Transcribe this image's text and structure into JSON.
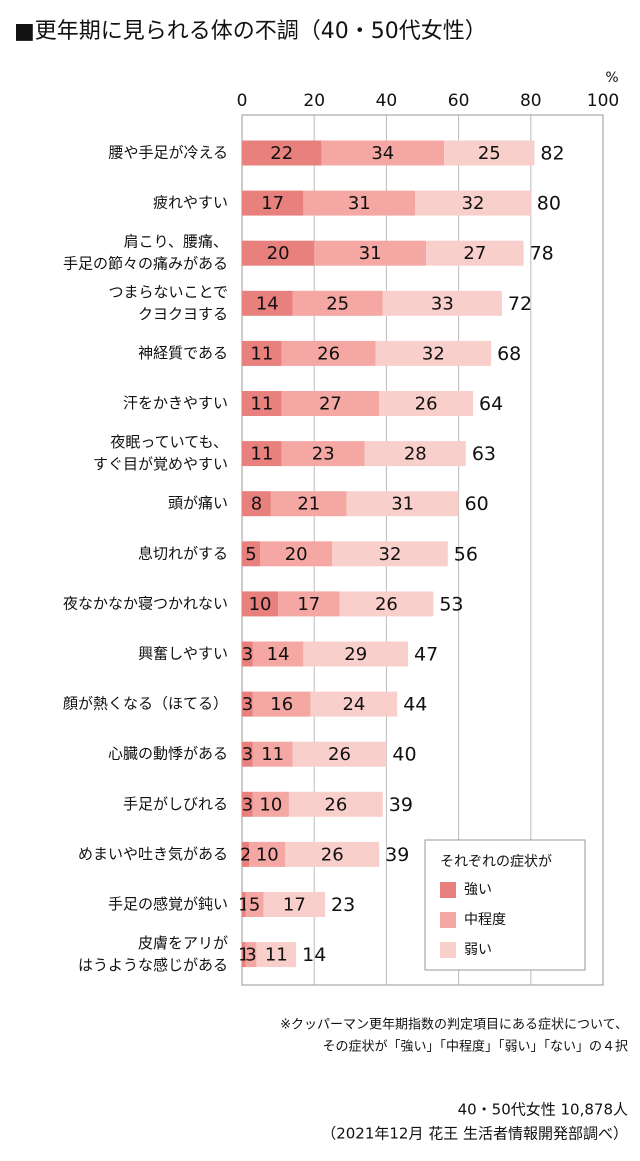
{
  "chart_data": {
    "type": "stacked_bar_horizontal",
    "title": "■更年期に見られる体の不調（40・50代女性）",
    "unit": "%",
    "categories": [
      [
        "腰や手足が冷える"
      ],
      [
        "疲れやすい"
      ],
      [
        "肩こり、腰痛、",
        "手足の節々の痛みがある"
      ],
      [
        "つまらないことで",
        "クヨクヨする"
      ],
      [
        "神経質である"
      ],
      [
        "汗をかきやすい"
      ],
      [
        "夜眠っていても、",
        "すぐ目が覚めやすい"
      ],
      [
        "頭が痛い"
      ],
      [
        "息切れがする"
      ],
      [
        "夜なかなか寝つかれない"
      ],
      [
        "興奮しやすい"
      ],
      [
        "顔が熱くなる（ほてる）"
      ],
      [
        "心臓の動悸がある"
      ],
      [
        "手足がしびれる"
      ],
      [
        "めまいや吐き気がある"
      ],
      [
        "手足の感覚が鈍い"
      ],
      [
        "皮膚をアリが",
        "はうような感じがある"
      ]
    ],
    "series": [
      {
        "name": "強い",
        "color": "#e8807e",
        "values": [
          22,
          17,
          20,
          14,
          11,
          11,
          11,
          8,
          5,
          10,
          3,
          3,
          3,
          3,
          2,
          1,
          1
        ]
      },
      {
        "name": "中程度",
        "color": "#f4a7a3",
        "values": [
          34,
          31,
          31,
          25,
          26,
          27,
          23,
          21,
          20,
          17,
          14,
          16,
          11,
          10,
          10,
          5,
          3
        ]
      },
      {
        "name": "弱い",
        "color": "#f9cfcc",
        "values": [
          25,
          32,
          27,
          33,
          32,
          26,
          28,
          31,
          32,
          26,
          29,
          24,
          26,
          26,
          26,
          17,
          11
        ]
      }
    ],
    "totals": [
      82,
      80,
      78,
      72,
      68,
      64,
      63,
      60,
      56,
      53,
      47,
      44,
      40,
      39,
      39,
      23,
      14
    ],
    "xlim": [
      0,
      100
    ],
    "xticks": [
      0,
      20,
      40,
      60,
      80,
      100
    ],
    "grid": true,
    "legend_title": "それぞれの症状が",
    "legend_position": "lower right",
    "notes": [
      "※クッパーマン更年期指数の判定項目にある症状について、",
      "その症状が「強い」「中程度」「弱い」「ない」の４択"
    ],
    "source": [
      "40・50代女性 10,878人",
      "（2021年12月 花王 生活者情報開発部調べ）"
    ]
  }
}
